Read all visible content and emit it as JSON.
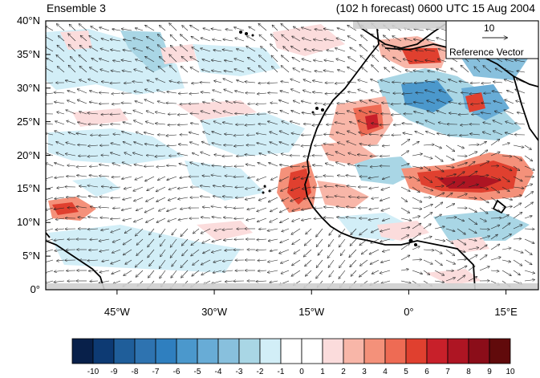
{
  "header": {
    "ensemble_label": "Ensemble 3",
    "forecast_label": "(102 h forecast) 0600 UTC 15 Aug 2004"
  },
  "map": {
    "lat_ticks": [
      {
        "value": 40,
        "label": "40°N"
      },
      {
        "value": 35,
        "label": "35°N"
      },
      {
        "value": 30,
        "label": "30°N"
      },
      {
        "value": 25,
        "label": "25°N"
      },
      {
        "value": 20,
        "label": "20°N"
      },
      {
        "value": 15,
        "label": "15°N"
      },
      {
        "value": 10,
        "label": "10°N"
      },
      {
        "value": 5,
        "label": "5°N"
      },
      {
        "value": 0,
        "label": "0°"
      }
    ],
    "lon_ticks": [
      {
        "value": -45,
        "label": "45°W"
      },
      {
        "value": -30,
        "label": "30°W"
      },
      {
        "value": -15,
        "label": "15°W"
      },
      {
        "value": 0,
        "label": "0°"
      },
      {
        "value": 15,
        "label": "15°E"
      }
    ],
    "lon_range": [
      -56,
      20
    ],
    "lat_range": [
      0,
      40
    ],
    "vector_reference": {
      "magnitude_label": "10",
      "caption": "Reference Vector"
    }
  },
  "colorbar": {
    "labels": [
      "-10",
      "-9",
      "-8",
      "-7",
      "-6",
      "-5",
      "-4",
      "-3",
      "-2",
      "-1",
      "0",
      "1",
      "2",
      "3",
      "4",
      "5",
      "6",
      "7",
      "8",
      "9",
      "10"
    ],
    "colors": [
      "#08204a",
      "#0d3a73",
      "#1f5e9a",
      "#2e73b0",
      "#2f7fbf",
      "#4b98cc",
      "#68acd6",
      "#88c0dd",
      "#a9d6e5",
      "#d2eef7",
      "#ffffff",
      "#ffffff",
      "#fbdcdc",
      "#f8b6a8",
      "#f4917a",
      "#ee6b54",
      "#e0402f",
      "#c8202a",
      "#ae1523",
      "#8b0d19",
      "#610a0b"
    ]
  }
}
